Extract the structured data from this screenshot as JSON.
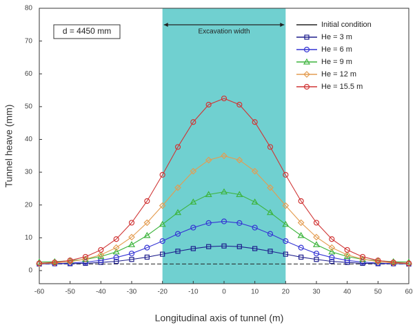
{
  "chart_data": {
    "type": "line",
    "x_label": "Longitudinal axis of tunnel (m)",
    "y_label": "Tunnel heave (mm)",
    "annotation": "d = 4450 mm",
    "shade_label": "Excavation width",
    "shade": [
      -20,
      20
    ],
    "shade_color": "#4cc4c4",
    "xlim": [
      -60,
      60
    ],
    "xticks": [
      -60,
      -50,
      -40,
      -30,
      -20,
      -10,
      0,
      10,
      20,
      30,
      40,
      50,
      60
    ],
    "ylim": [
      -4,
      80
    ],
    "yticks": [
      0,
      10,
      20,
      30,
      40,
      50,
      60,
      70,
      80
    ],
    "x": [
      -60,
      -55,
      -50,
      -45,
      -40,
      -35,
      -30,
      -25,
      -20,
      -15,
      -10,
      -5,
      0,
      5,
      10,
      15,
      20,
      25,
      30,
      35,
      40,
      45,
      50,
      55,
      60
    ],
    "series": [
      {
        "name": "Initial condition",
        "color": "#222222",
        "marker": "none",
        "values": [
          2,
          2,
          2,
          2,
          2,
          2,
          2,
          2,
          2,
          2,
          2,
          2,
          2,
          2,
          2,
          2,
          2,
          2,
          2,
          2,
          2,
          2,
          2,
          2,
          2
        ]
      },
      {
        "name": "He = 3 m",
        "color": "#1c1c8c",
        "marker": "square",
        "values": [
          2.0,
          2.1,
          2.1,
          2.2,
          2.5,
          2.8,
          3.4,
          4.1,
          5.0,
          5.9,
          6.7,
          7.3,
          7.5,
          7.3,
          6.7,
          5.9,
          5.0,
          4.1,
          3.4,
          2.8,
          2.5,
          2.2,
          2.1,
          2.1,
          2.0
        ]
      },
      {
        "name": "He = 6 m",
        "color": "#3434d4",
        "marker": "circle",
        "values": [
          2.1,
          2.1,
          2.3,
          2.6,
          3.1,
          4.0,
          5.2,
          7.0,
          9.0,
          11.2,
          13.1,
          14.5,
          15,
          14.5,
          13.1,
          11.2,
          9.0,
          7.0,
          5.2,
          4.0,
          3.1,
          2.6,
          2.3,
          2.1,
          2.1
        ]
      },
      {
        "name": "He = 9 m",
        "color": "#3cb43c",
        "marker": "triangle",
        "values": [
          2.6,
          2.7,
          3.0,
          3.4,
          4.3,
          5.7,
          7.9,
          10.7,
          14.1,
          17.7,
          20.9,
          23.2,
          24,
          23.2,
          20.9,
          17.7,
          14.1,
          10.7,
          7.9,
          5.7,
          4.3,
          3.4,
          3.0,
          2.7,
          2.6
        ]
      },
      {
        "name": "He = 12 m",
        "color": "#e49c50",
        "marker": "diamond",
        "values": [
          2.1,
          2.3,
          2.7,
          3.5,
          4.8,
          7.0,
          10.2,
          14.6,
          19.8,
          25.3,
          30.3,
          33.7,
          35,
          33.7,
          30.3,
          25.3,
          19.8,
          14.6,
          10.2,
          7.0,
          4.8,
          3.5,
          2.7,
          2.3,
          2.1
        ]
      },
      {
        "name": "He = 15.5 m",
        "color": "#d03434",
        "marker": "circle",
        "values": [
          2.2,
          2.5,
          3.1,
          4.2,
          6.3,
          9.6,
          14.6,
          21.2,
          29.2,
          37.7,
          45.3,
          50.6,
          52.5,
          50.6,
          45.3,
          37.7,
          29.2,
          21.2,
          14.6,
          9.6,
          6.3,
          4.2,
          3.1,
          2.5,
          2.2
        ]
      }
    ]
  }
}
